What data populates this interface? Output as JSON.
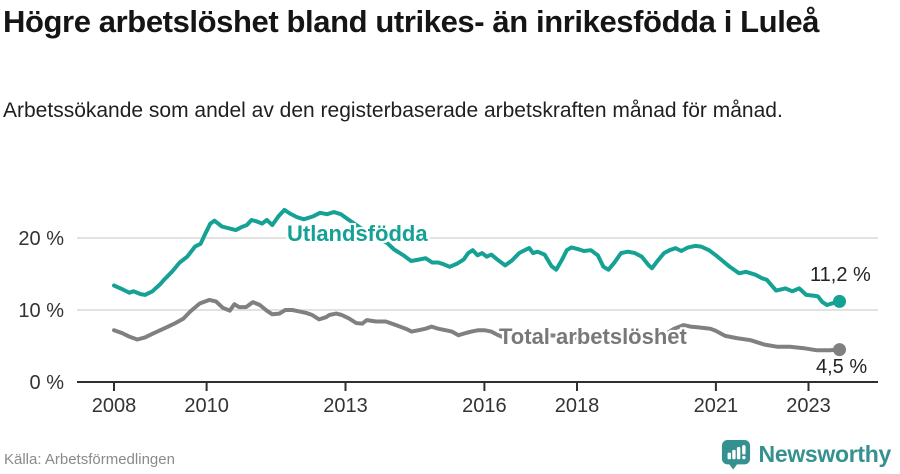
{
  "header": {
    "title": "Högre arbetslöshet bland utrikes- än inrikesfödda i Luleå",
    "subtitle": "Arbetssökande som andel av den registerbaserade arbetskraften månad för månad."
  },
  "chart_data": {
    "type": "line",
    "title": "Högre arbetslöshet bland utrikes- än inrikesfödda i Luleå",
    "subtitle": "Arbetssökande som andel av den registerbaserade arbetskraften månad för månad.",
    "xlabel": "",
    "ylabel": "",
    "x_ticks": [
      2008,
      2010,
      2013,
      2016,
      2018,
      2021,
      2023
    ],
    "x_tick_labels": [
      "2008",
      "2010",
      "2013",
      "2016",
      "2018",
      "2021",
      "2023"
    ],
    "y_ticks": [
      0,
      10,
      20
    ],
    "y_tick_labels": [
      "0 %",
      "10 %",
      "20 %"
    ],
    "xlim": [
      2007.2,
      2024.2
    ],
    "ylim": [
      0,
      25.5
    ],
    "grid": "horizontal",
    "legend_position": "inline-labels",
    "series": [
      {
        "name": "Utlandsfödda",
        "color": "#16a195",
        "end_label": "11,2 %",
        "end_value": 11.2,
        "points": [
          [
            2008.0,
            13.4
          ],
          [
            2008.17,
            12.9
          ],
          [
            2008.33,
            12.4
          ],
          [
            2008.42,
            12.6
          ],
          [
            2008.58,
            12.2
          ],
          [
            2008.67,
            12.1
          ],
          [
            2008.83,
            12.6
          ],
          [
            2009.0,
            13.6
          ],
          [
            2009.08,
            14.2
          ],
          [
            2009.25,
            15.3
          ],
          [
            2009.42,
            16.6
          ],
          [
            2009.58,
            17.4
          ],
          [
            2009.75,
            18.8
          ],
          [
            2009.87,
            19.2
          ],
          [
            2009.95,
            20.3
          ],
          [
            2010.08,
            22.0
          ],
          [
            2010.17,
            22.4
          ],
          [
            2010.33,
            21.6
          ],
          [
            2010.5,
            21.3
          ],
          [
            2010.63,
            21.1
          ],
          [
            2010.75,
            21.5
          ],
          [
            2010.87,
            21.8
          ],
          [
            2010.97,
            22.5
          ],
          [
            2011.08,
            22.3
          ],
          [
            2011.2,
            22.0
          ],
          [
            2011.3,
            22.5
          ],
          [
            2011.42,
            21.8
          ],
          [
            2011.55,
            23.0
          ],
          [
            2011.68,
            23.9
          ],
          [
            2011.8,
            23.4
          ],
          [
            2011.95,
            22.9
          ],
          [
            2012.1,
            22.6
          ],
          [
            2012.3,
            23.0
          ],
          [
            2012.45,
            23.5
          ],
          [
            2012.6,
            23.3
          ],
          [
            2012.75,
            23.6
          ],
          [
            2012.9,
            23.3
          ],
          [
            2013.1,
            22.4
          ],
          [
            2013.3,
            21.5
          ],
          [
            2013.5,
            20.8
          ],
          [
            2013.7,
            20.0
          ],
          [
            2013.9,
            19.3
          ],
          [
            2014.05,
            18.4
          ],
          [
            2014.25,
            17.6
          ],
          [
            2014.42,
            16.8
          ],
          [
            2014.58,
            17.0
          ],
          [
            2014.73,
            17.2
          ],
          [
            2014.87,
            16.6
          ],
          [
            2015.0,
            16.6
          ],
          [
            2015.1,
            16.4
          ],
          [
            2015.25,
            16.0
          ],
          [
            2015.4,
            16.4
          ],
          [
            2015.55,
            17.0
          ],
          [
            2015.65,
            17.9
          ],
          [
            2015.75,
            18.3
          ],
          [
            2015.85,
            17.6
          ],
          [
            2015.95,
            17.9
          ],
          [
            2016.05,
            17.4
          ],
          [
            2016.15,
            17.7
          ],
          [
            2016.3,
            16.9
          ],
          [
            2016.45,
            16.2
          ],
          [
            2016.6,
            16.9
          ],
          [
            2016.75,
            17.9
          ],
          [
            2016.9,
            18.4
          ],
          [
            2016.97,
            18.6
          ],
          [
            2017.05,
            17.9
          ],
          [
            2017.15,
            18.1
          ],
          [
            2017.3,
            17.7
          ],
          [
            2017.45,
            16.1
          ],
          [
            2017.55,
            15.6
          ],
          [
            2017.67,
            16.9
          ],
          [
            2017.78,
            18.3
          ],
          [
            2017.88,
            18.7
          ],
          [
            2018.0,
            18.5
          ],
          [
            2018.15,
            18.2
          ],
          [
            2018.3,
            18.3
          ],
          [
            2018.45,
            17.6
          ],
          [
            2018.57,
            16.0
          ],
          [
            2018.68,
            15.6
          ],
          [
            2018.82,
            16.7
          ],
          [
            2018.95,
            17.9
          ],
          [
            2019.1,
            18.1
          ],
          [
            2019.25,
            17.9
          ],
          [
            2019.4,
            17.4
          ],
          [
            2019.55,
            16.2
          ],
          [
            2019.62,
            15.8
          ],
          [
            2019.75,
            16.9
          ],
          [
            2019.88,
            17.9
          ],
          [
            2020.0,
            18.3
          ],
          [
            2020.13,
            18.6
          ],
          [
            2020.25,
            18.2
          ],
          [
            2020.4,
            18.7
          ],
          [
            2020.55,
            18.9
          ],
          [
            2020.68,
            18.8
          ],
          [
            2020.85,
            18.3
          ],
          [
            2021.0,
            17.6
          ],
          [
            2021.15,
            16.8
          ],
          [
            2021.3,
            16.0
          ],
          [
            2021.5,
            15.1
          ],
          [
            2021.65,
            15.3
          ],
          [
            2021.85,
            14.9
          ],
          [
            2022.0,
            14.4
          ],
          [
            2022.1,
            14.2
          ],
          [
            2022.3,
            12.7
          ],
          [
            2022.5,
            13.0
          ],
          [
            2022.65,
            12.6
          ],
          [
            2022.8,
            13.0
          ],
          [
            2022.95,
            12.1
          ],
          [
            2023.1,
            12.0
          ],
          [
            2023.2,
            11.9
          ],
          [
            2023.3,
            11.1
          ],
          [
            2023.4,
            10.7
          ],
          [
            2023.55,
            11.0
          ],
          [
            2023.67,
            11.2
          ]
        ]
      },
      {
        "name": "Total arbetslöshet",
        "color": "#808080",
        "end_label": "4,5 %",
        "end_value": 4.5,
        "points": [
          [
            2008.0,
            7.2
          ],
          [
            2008.17,
            6.8
          ],
          [
            2008.33,
            6.3
          ],
          [
            2008.5,
            5.9
          ],
          [
            2008.67,
            6.2
          ],
          [
            2008.83,
            6.7
          ],
          [
            2009.0,
            7.2
          ],
          [
            2009.17,
            7.7
          ],
          [
            2009.33,
            8.2
          ],
          [
            2009.5,
            8.8
          ],
          [
            2009.65,
            9.8
          ],
          [
            2009.85,
            10.9
          ],
          [
            2010.06,
            11.4
          ],
          [
            2010.2,
            11.2
          ],
          [
            2010.35,
            10.3
          ],
          [
            2010.5,
            9.9
          ],
          [
            2010.6,
            10.8
          ],
          [
            2010.7,
            10.4
          ],
          [
            2010.85,
            10.4
          ],
          [
            2011.0,
            11.1
          ],
          [
            2011.15,
            10.7
          ],
          [
            2011.3,
            9.9
          ],
          [
            2011.42,
            9.4
          ],
          [
            2011.57,
            9.5
          ],
          [
            2011.7,
            10.0
          ],
          [
            2011.85,
            10.0
          ],
          [
            2012.0,
            9.8
          ],
          [
            2012.15,
            9.6
          ],
          [
            2012.28,
            9.3
          ],
          [
            2012.43,
            8.7
          ],
          [
            2012.58,
            9.0
          ],
          [
            2012.65,
            9.3
          ],
          [
            2012.8,
            9.5
          ],
          [
            2012.92,
            9.3
          ],
          [
            2013.08,
            8.8
          ],
          [
            2013.23,
            8.2
          ],
          [
            2013.36,
            8.1
          ],
          [
            2013.46,
            8.6
          ],
          [
            2013.66,
            8.4
          ],
          [
            2013.87,
            8.4
          ],
          [
            2014.09,
            7.9
          ],
          [
            2014.3,
            7.4
          ],
          [
            2014.43,
            7.0
          ],
          [
            2014.58,
            7.2
          ],
          [
            2014.73,
            7.4
          ],
          [
            2014.86,
            7.7
          ],
          [
            2015.0,
            7.4
          ],
          [
            2015.16,
            7.2
          ],
          [
            2015.3,
            7.0
          ],
          [
            2015.44,
            6.5
          ],
          [
            2015.6,
            6.8
          ],
          [
            2015.72,
            7.0
          ],
          [
            2015.87,
            7.2
          ],
          [
            2016.0,
            7.2
          ],
          [
            2016.15,
            7.0
          ],
          [
            2016.3,
            6.5
          ],
          [
            2016.45,
            6.1
          ],
          [
            2016.6,
            6.3
          ],
          [
            2016.8,
            6.5
          ],
          [
            2017.0,
            6.8
          ],
          [
            2017.2,
            6.7
          ],
          [
            2017.4,
            6.5
          ],
          [
            2017.6,
            6.4
          ],
          [
            2017.8,
            6.3
          ],
          [
            2018.0,
            6.1
          ],
          [
            2018.2,
            6.0
          ],
          [
            2018.4,
            5.9
          ],
          [
            2018.6,
            5.9
          ],
          [
            2018.8,
            6.0
          ],
          [
            2019.0,
            6.1
          ],
          [
            2019.2,
            6.0
          ],
          [
            2019.4,
            6.0
          ],
          [
            2019.6,
            6.1
          ],
          [
            2019.8,
            6.4
          ],
          [
            2019.95,
            6.8
          ],
          [
            2020.1,
            7.4
          ],
          [
            2020.3,
            7.9
          ],
          [
            2020.45,
            7.7
          ],
          [
            2020.6,
            7.6
          ],
          [
            2020.88,
            7.4
          ],
          [
            2021.0,
            7.1
          ],
          [
            2021.2,
            6.4
          ],
          [
            2021.45,
            6.1
          ],
          [
            2021.75,
            5.8
          ],
          [
            2022.05,
            5.2
          ],
          [
            2022.32,
            4.9
          ],
          [
            2022.6,
            4.9
          ],
          [
            2022.9,
            4.7
          ],
          [
            2023.18,
            4.4
          ],
          [
            2023.46,
            4.4
          ],
          [
            2023.67,
            4.5
          ]
        ]
      }
    ]
  },
  "footer": {
    "source": "Källa: Arbetsförmedlingen",
    "brand": "Newsworthy"
  },
  "colors": {
    "accent_teal": "#16a195",
    "line_gray": "#808080",
    "gridline": "#d9d9d9",
    "axis": "#2f2f2f",
    "tick_label": "#333333",
    "logo_teal": "#35918f"
  }
}
